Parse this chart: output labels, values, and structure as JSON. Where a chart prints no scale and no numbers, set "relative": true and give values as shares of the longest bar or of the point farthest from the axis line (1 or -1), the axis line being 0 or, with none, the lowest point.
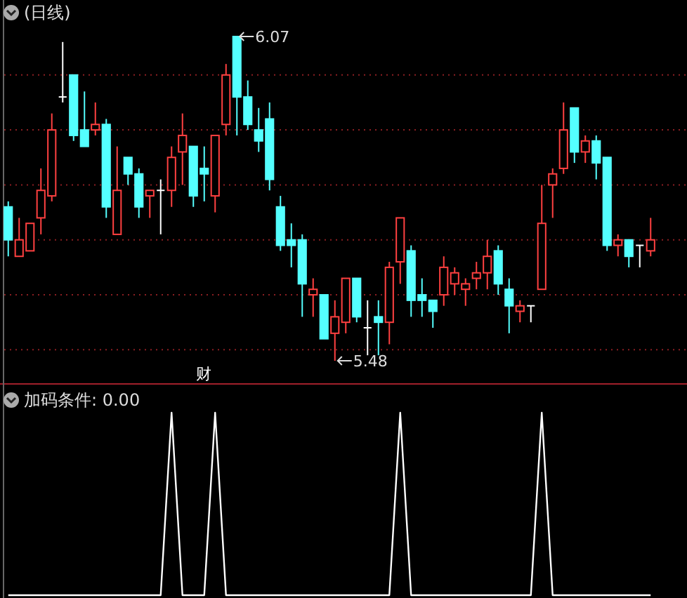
{
  "chart_data": [
    {
      "type": "candlestick",
      "title": "(日线)",
      "categories": [
        null,
        null,
        null,
        null,
        null,
        null,
        null,
        null,
        null,
        null,
        null,
        null,
        null,
        null,
        null,
        null,
        null,
        null,
        null,
        null,
        null,
        null,
        null,
        null,
        null,
        null,
        null,
        null,
        null,
        null,
        null,
        null,
        null,
        null,
        null,
        null,
        null,
        null,
        null,
        null,
        null,
        null,
        null,
        null,
        null,
        null,
        null,
        null,
        null,
        null,
        null,
        null,
        null,
        null,
        null,
        null,
        null,
        null,
        null,
        null
      ],
      "ohlc": [
        [
          5.76,
          5.77,
          5.67,
          5.7
        ],
        [
          5.67,
          5.74,
          5.67,
          5.7
        ],
        [
          5.68,
          5.73,
          5.68,
          5.73
        ],
        [
          5.74,
          5.83,
          5.71,
          5.79
        ],
        [
          5.78,
          5.93,
          5.77,
          5.9
        ],
        [
          5.96,
          6.06,
          5.95,
          5.96
        ],
        [
          6.0,
          6.0,
          5.88,
          5.89
        ],
        [
          5.9,
          5.97,
          5.87,
          5.87
        ],
        [
          5.9,
          5.95,
          5.89,
          5.91
        ],
        [
          5.91,
          5.92,
          5.74,
          5.76
        ],
        [
          5.71,
          5.87,
          5.71,
          5.79
        ],
        [
          5.85,
          5.85,
          5.8,
          5.82
        ],
        [
          5.82,
          5.83,
          5.74,
          5.76
        ],
        [
          5.78,
          5.79,
          5.74,
          5.79
        ],
        [
          5.79,
          5.81,
          5.71,
          5.79
        ],
        [
          5.79,
          5.87,
          5.76,
          5.85
        ],
        [
          5.86,
          5.93,
          5.8,
          5.89
        ],
        [
          5.87,
          5.87,
          5.76,
          5.78
        ],
        [
          5.83,
          5.87,
          5.77,
          5.82
        ],
        [
          5.78,
          5.89,
          5.75,
          5.89
        ],
        [
          5.91,
          6.02,
          5.89,
          6.0
        ],
        [
          6.07,
          6.07,
          5.89,
          5.96
        ],
        [
          5.96,
          5.99,
          5.9,
          5.91
        ],
        [
          5.9,
          5.94,
          5.86,
          5.88
        ],
        [
          5.92,
          5.95,
          5.79,
          5.81
        ],
        [
          5.76,
          5.78,
          5.68,
          5.69
        ],
        [
          5.7,
          5.73,
          5.65,
          5.69
        ],
        [
          5.7,
          5.71,
          5.56,
          5.62
        ],
        [
          5.6,
          5.63,
          5.56,
          5.61
        ],
        [
          5.6,
          5.6,
          5.52,
          5.52
        ],
        [
          5.53,
          5.59,
          5.48,
          5.56
        ],
        [
          5.55,
          5.63,
          5.53,
          5.63
        ],
        [
          5.63,
          5.63,
          5.55,
          5.56
        ],
        [
          5.54,
          5.59,
          5.49,
          5.54
        ],
        [
          5.56,
          5.59,
          5.49,
          5.55
        ],
        [
          5.55,
          5.66,
          5.51,
          5.65
        ],
        [
          5.66,
          5.74,
          5.62,
          5.74
        ],
        [
          5.68,
          5.69,
          5.56,
          5.59
        ],
        [
          5.6,
          5.63,
          5.56,
          5.59
        ],
        [
          5.59,
          5.59,
          5.54,
          5.57
        ],
        [
          5.6,
          5.67,
          5.58,
          5.65
        ],
        [
          5.62,
          5.65,
          5.6,
          5.64
        ],
        [
          5.61,
          5.63,
          5.58,
          5.62
        ],
        [
          5.63,
          5.66,
          5.61,
          5.64
        ],
        [
          5.64,
          5.7,
          5.61,
          5.67
        ],
        [
          5.68,
          5.69,
          5.6,
          5.62
        ],
        [
          5.61,
          5.63,
          5.53,
          5.58
        ],
        [
          5.57,
          5.59,
          5.55,
          5.58
        ],
        [
          5.58,
          5.58,
          5.55,
          5.58
        ],
        [
          5.61,
          5.8,
          5.61,
          5.73
        ],
        [
          5.8,
          5.83,
          5.74,
          5.82
        ],
        [
          5.83,
          5.95,
          5.82,
          5.9
        ],
        [
          5.94,
          5.94,
          5.84,
          5.86
        ],
        [
          5.86,
          5.89,
          5.84,
          5.88
        ],
        [
          5.88,
          5.89,
          5.81,
          5.84
        ],
        [
          5.85,
          5.85,
          5.68,
          5.69
        ],
        [
          5.69,
          5.71,
          5.67,
          5.7
        ],
        [
          5.7,
          5.7,
          5.65,
          5.67
        ],
        [
          5.69,
          5.69,
          5.65,
          5.69
        ],
        [
          5.68,
          5.74,
          5.67,
          5.7
        ]
      ],
      "yticks": [
        {
          "value": 5.5,
          "label": null
        },
        {
          "value": 5.6,
          "label": null
        },
        {
          "value": 5.7,
          "label": null
        },
        {
          "value": 5.8,
          "label": null
        },
        {
          "value": 5.9,
          "label": null
        },
        {
          "value": 6.0,
          "label": null
        }
      ],
      "grid": true,
      "annotations": [
        "6.07",
        "5.48",
        "财"
      ]
    },
    {
      "type": "line",
      "title": "加码条件: 0.00",
      "relative": true,
      "color": "#ffffff",
      "categories": [
        null,
        null,
        null,
        null,
        null,
        null,
        null,
        null,
        null,
        null,
        null,
        null,
        null,
        null,
        null,
        null,
        null,
        null,
        null,
        null,
        null,
        null,
        null,
        null,
        null,
        null,
        null,
        null,
        null,
        null,
        null,
        null,
        null,
        null,
        null,
        null,
        null,
        null,
        null,
        null,
        null,
        null,
        null,
        null,
        null,
        null,
        null,
        null,
        null,
        null,
        null,
        null,
        null,
        null,
        null,
        null,
        null,
        null,
        null,
        null
      ],
      "values": [
        0,
        0,
        0,
        0,
        0,
        0,
        0,
        0,
        0,
        0,
        0,
        0,
        0,
        0,
        0,
        1,
        0,
        0,
        0,
        1,
        0,
        0,
        0,
        0,
        0,
        0,
        0,
        0,
        0,
        0,
        0,
        0,
        0,
        0,
        0,
        0,
        1,
        0,
        0,
        0,
        0,
        0,
        0,
        0,
        0,
        0,
        0,
        0,
        0,
        1,
        0,
        0,
        0,
        0,
        0,
        0,
        0,
        0,
        0,
        0
      ]
    }
  ]
}
